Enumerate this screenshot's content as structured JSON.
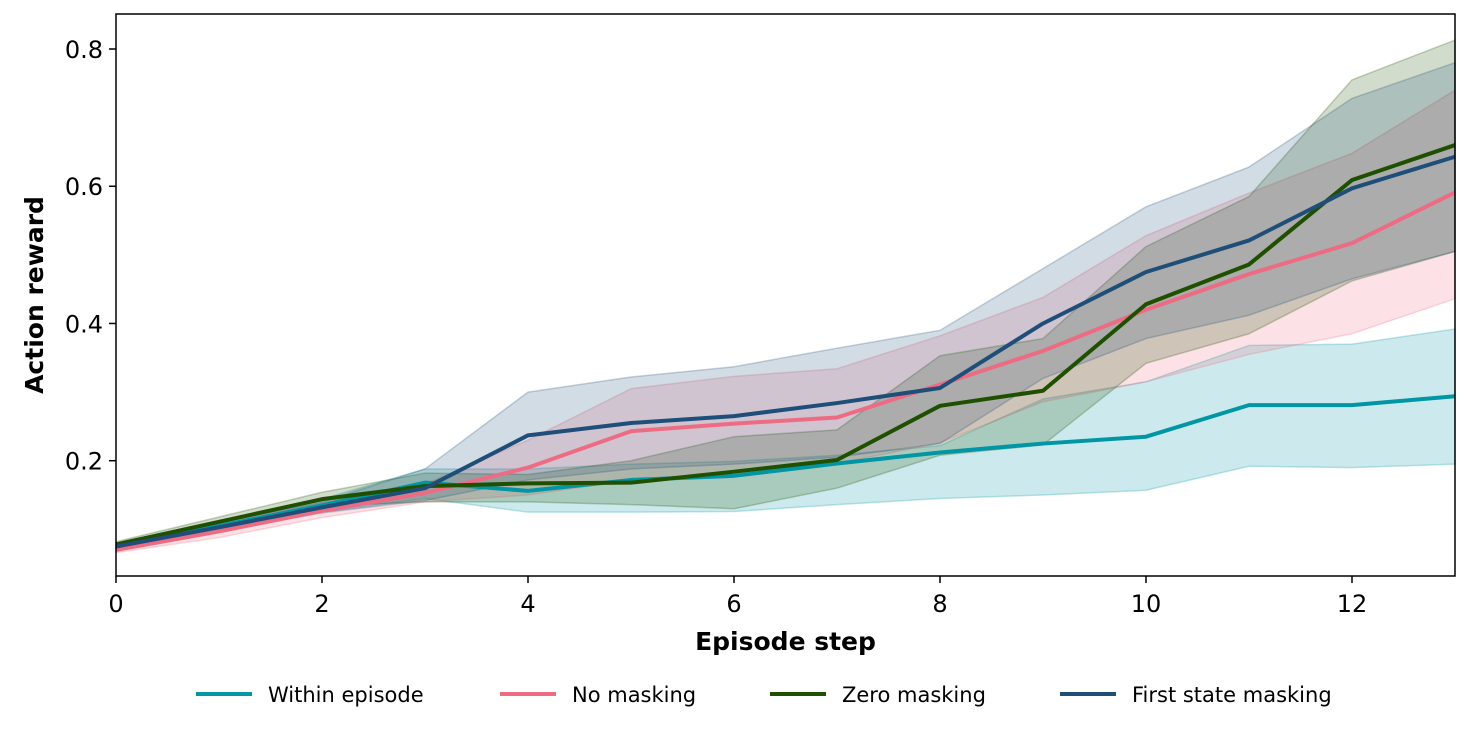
{
  "chart_data": {
    "type": "line",
    "title": "",
    "xlabel": "Episode step",
    "ylabel": "Action reward",
    "xlim": [
      0,
      13
    ],
    "ylim": [
      0.032,
      0.851
    ],
    "xticks": [
      0,
      2,
      4,
      6,
      8,
      10,
      12
    ],
    "xtick_labels": [
      "0",
      "2",
      "4",
      "6",
      "8",
      "10",
      "12"
    ],
    "yticks": [
      0.2,
      0.4,
      0.6,
      0.8
    ],
    "ytick_labels": [
      "0.2",
      "0.4",
      "0.6",
      "0.8"
    ],
    "grid": false,
    "legend_position": "bottom-center",
    "x": [
      0,
      1,
      2,
      3,
      4,
      5,
      6,
      7,
      8,
      9,
      10,
      11,
      12,
      13
    ],
    "series": [
      {
        "name": "Within episode",
        "color": "#0096a5",
        "values": [
          0.075,
          0.105,
          0.135,
          0.168,
          0.156,
          0.172,
          0.178,
          0.196,
          0.212,
          0.225,
          0.235,
          0.281,
          0.281,
          0.294
        ],
        "lower": [
          0.072,
          0.098,
          0.125,
          0.145,
          0.125,
          0.125,
          0.126,
          0.136,
          0.145,
          0.15,
          0.157,
          0.192,
          0.19,
          0.195
        ],
        "upper": [
          0.079,
          0.112,
          0.144,
          0.188,
          0.188,
          0.195,
          0.199,
          0.208,
          0.222,
          0.29,
          0.315,
          0.368,
          0.37,
          0.392
        ]
      },
      {
        "name": "No masking",
        "color": "#ee6b84",
        "values": [
          0.07,
          0.097,
          0.127,
          0.153,
          0.19,
          0.243,
          0.254,
          0.263,
          0.311,
          0.36,
          0.42,
          0.472,
          0.517,
          0.591
        ],
        "lower": [
          0.066,
          0.088,
          0.117,
          0.14,
          0.15,
          0.172,
          0.182,
          0.196,
          0.226,
          0.286,
          0.315,
          0.355,
          0.385,
          0.436
        ],
        "upper": [
          0.074,
          0.108,
          0.139,
          0.166,
          0.23,
          0.305,
          0.323,
          0.334,
          0.382,
          0.438,
          0.528,
          0.59,
          0.648,
          0.74
        ]
      },
      {
        "name": "Zero masking",
        "color": "#1f5000",
        "values": [
          0.078,
          0.111,
          0.144,
          0.163,
          0.167,
          0.168,
          0.184,
          0.201,
          0.28,
          0.302,
          0.428,
          0.486,
          0.609,
          0.66
        ],
        "lower": [
          0.074,
          0.104,
          0.134,
          0.14,
          0.14,
          0.136,
          0.13,
          0.16,
          0.208,
          0.223,
          0.342,
          0.385,
          0.462,
          0.505
        ],
        "upper": [
          0.082,
          0.118,
          0.154,
          0.182,
          0.18,
          0.2,
          0.235,
          0.245,
          0.353,
          0.378,
          0.512,
          0.585,
          0.755,
          0.813
        ]
      },
      {
        "name": "First state masking",
        "color": "#1f4e79",
        "values": [
          0.075,
          0.103,
          0.132,
          0.16,
          0.237,
          0.255,
          0.265,
          0.284,
          0.306,
          0.4,
          0.475,
          0.521,
          0.597,
          0.643
        ],
        "lower": [
          0.072,
          0.097,
          0.124,
          0.142,
          0.172,
          0.188,
          0.195,
          0.205,
          0.225,
          0.32,
          0.378,
          0.412,
          0.465,
          0.505
        ],
        "upper": [
          0.079,
          0.11,
          0.14,
          0.188,
          0.3,
          0.322,
          0.337,
          0.364,
          0.39,
          0.48,
          0.57,
          0.628,
          0.728,
          0.78
        ]
      }
    ]
  }
}
